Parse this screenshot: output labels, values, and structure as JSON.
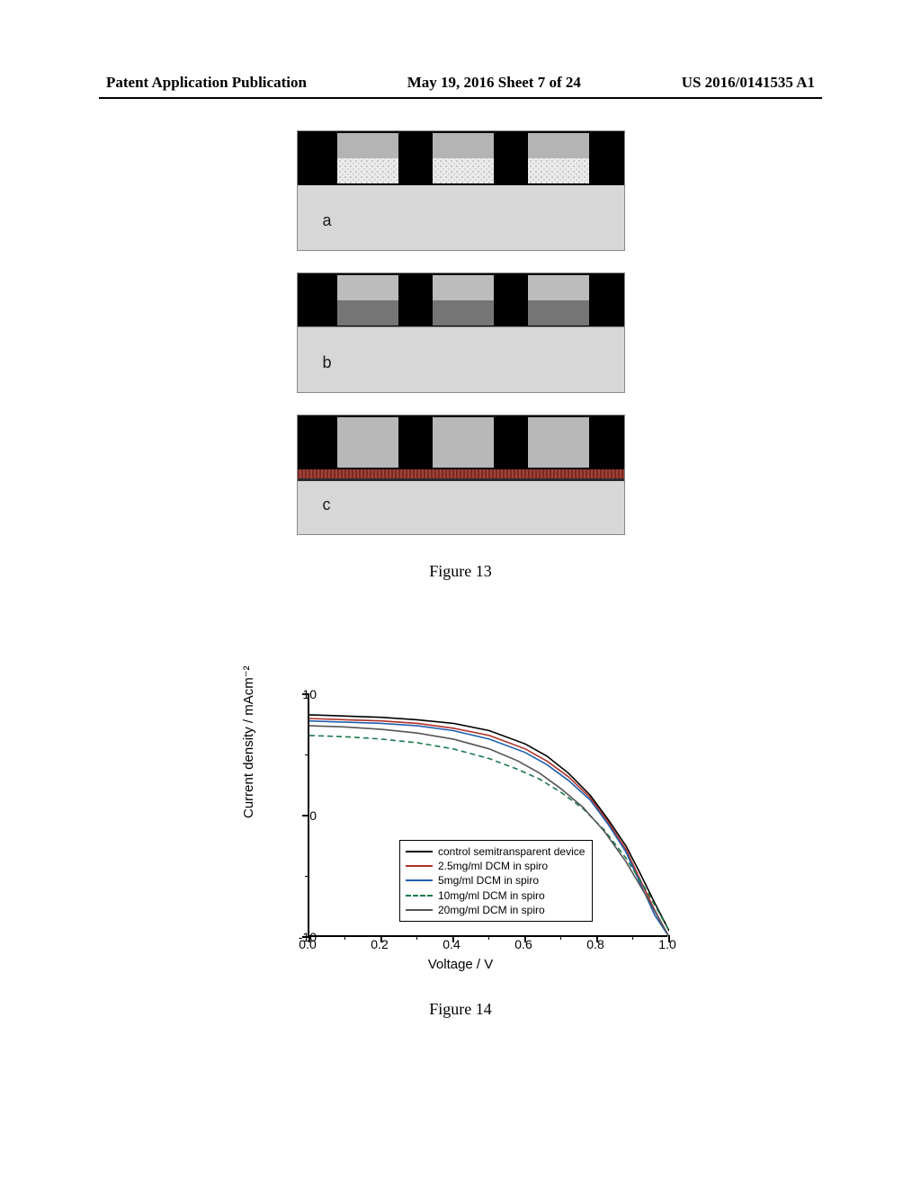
{
  "header": {
    "left": "Patent Application Publication",
    "center": "May 19, 2016  Sheet 7 of 24",
    "right": "US 2016/0141535 A1"
  },
  "figure13": {
    "caption": "Figure 13",
    "panels": [
      {
        "label": "a"
      },
      {
        "label": "b"
      },
      {
        "label": "c"
      }
    ]
  },
  "figure14": {
    "caption": "Figure 14",
    "type": "line",
    "xlabel": "Voltage / V",
    "ylabel": "Current density / mAcm⁻²",
    "xlim": [
      0.0,
      1.0
    ],
    "ylim": [
      -10,
      10
    ],
    "xticks_major": [
      0.0,
      0.2,
      0.4,
      0.6,
      0.8,
      1.0
    ],
    "xticks_minor": [
      0.1,
      0.3,
      0.5,
      0.7,
      0.9
    ],
    "yticks_major": [
      -10,
      0,
      10
    ],
    "yticks_minor": [
      -5,
      5
    ],
    "background_color": "#ffffff",
    "axis_color": "#000000",
    "tick_fontsize": 14,
    "label_fontsize": 15,
    "line_width": 1.6,
    "legend": {
      "position": "lower-left-inside",
      "border_color": "#000000",
      "fontsize": 12
    },
    "series": [
      {
        "name": "control semitransparent device",
        "color": "#000000",
        "dash": "solid",
        "x": [
          0.0,
          0.1,
          0.2,
          0.3,
          0.4,
          0.5,
          0.6,
          0.66,
          0.72,
          0.78,
          0.83,
          0.88,
          0.92,
          0.96,
          1.0
        ],
        "y": [
          8.3,
          8.2,
          8.1,
          7.9,
          7.6,
          7.0,
          5.9,
          4.9,
          3.5,
          1.7,
          -0.3,
          -2.5,
          -4.8,
          -7.2,
          -9.5
        ]
      },
      {
        "name": "2.5mg/ml DCM in spiro",
        "color": "#b03028",
        "dash": "solid",
        "x": [
          0.0,
          0.1,
          0.2,
          0.3,
          0.4,
          0.5,
          0.6,
          0.66,
          0.72,
          0.78,
          0.83,
          0.88,
          0.92,
          0.96,
          1.0
        ],
        "y": [
          8.0,
          7.9,
          7.8,
          7.6,
          7.2,
          6.6,
          5.5,
          4.5,
          3.2,
          1.5,
          -0.5,
          -2.8,
          -5.3,
          -7.8,
          -10.0
        ]
      },
      {
        "name": "5mg/ml DCM in spiro",
        "color": "#1f5fae",
        "dash": "solid",
        "x": [
          0.0,
          0.1,
          0.2,
          0.3,
          0.4,
          0.5,
          0.6,
          0.66,
          0.72,
          0.78,
          0.83,
          0.88,
          0.92,
          0.96,
          1.0
        ],
        "y": [
          7.8,
          7.7,
          7.6,
          7.4,
          7.0,
          6.3,
          5.2,
          4.2,
          2.9,
          1.3,
          -0.7,
          -3.0,
          -5.6,
          -8.2,
          -10.0
        ]
      },
      {
        "name": "10mg/ml DCM in spiro",
        "color": "#1a7a4a",
        "dash": "dashed",
        "x": [
          0.0,
          0.1,
          0.2,
          0.3,
          0.4,
          0.5,
          0.58,
          0.64,
          0.7,
          0.76,
          0.82,
          0.88,
          0.94,
          1.0
        ],
        "y": [
          6.6,
          6.5,
          6.3,
          6.0,
          5.5,
          4.7,
          3.8,
          3.0,
          1.9,
          0.6,
          -1.2,
          -3.5,
          -6.3,
          -9.5
        ]
      },
      {
        "name": "20mg/ml DCM in spiro",
        "color": "#555555",
        "dash": "solid",
        "x": [
          0.0,
          0.1,
          0.2,
          0.3,
          0.4,
          0.5,
          0.58,
          0.64,
          0.7,
          0.76,
          0.82,
          0.88,
          0.94,
          1.0
        ],
        "y": [
          7.4,
          7.3,
          7.1,
          6.8,
          6.3,
          5.5,
          4.5,
          3.5,
          2.2,
          0.7,
          -1.3,
          -3.8,
          -6.8,
          -10.0
        ]
      }
    ]
  }
}
